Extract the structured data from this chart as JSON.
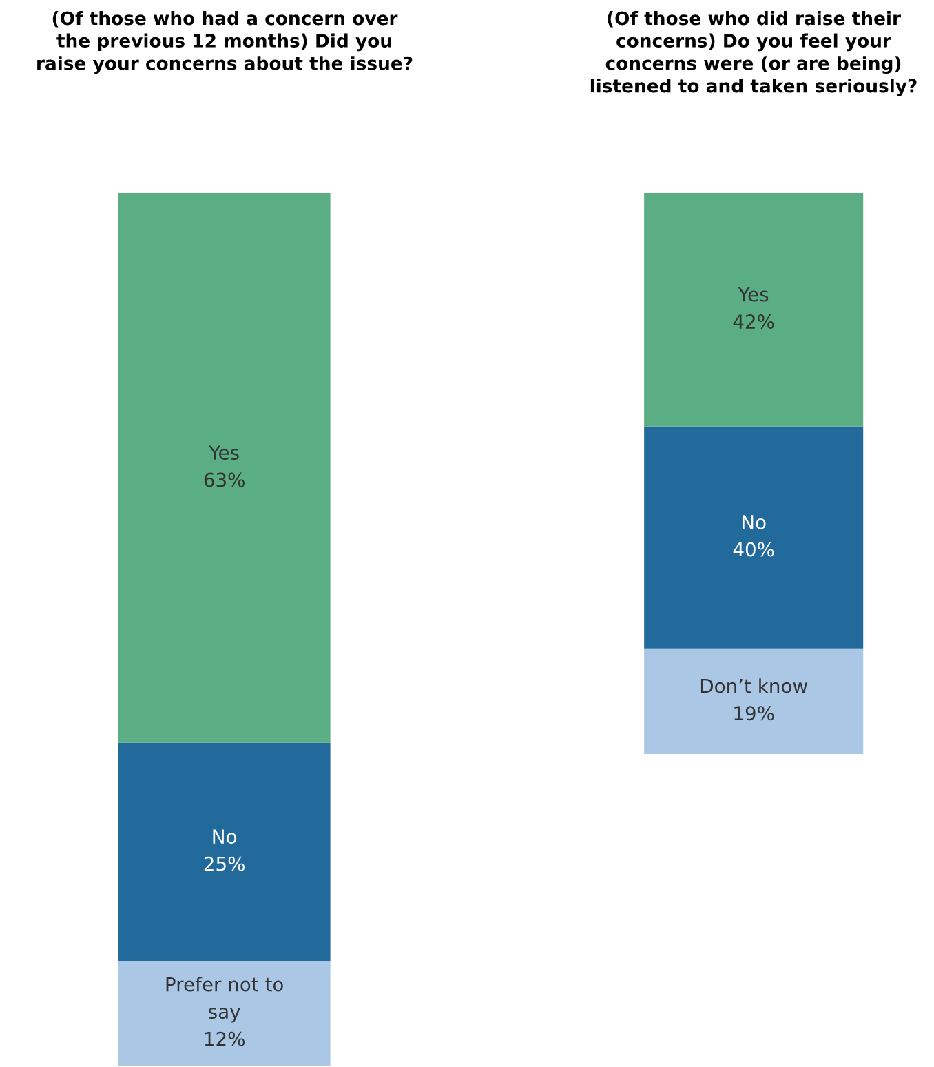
{
  "chart_data": [
    {
      "type": "bar",
      "stacked": true,
      "title": "(Of those who had a concern over\nthe previous 12 months) Did you\nraise your concerns about the issue?",
      "categories": [
        null
      ],
      "ylim": [
        0,
        100
      ],
      "tick_labels": false,
      "legend": false,
      "grid": false,
      "series": [
        {
          "name": "Prefer not to\nsay",
          "color": "#abc7e6",
          "values": [
            12
          ],
          "value_labels": [
            "12%"
          ]
        },
        {
          "name": "No",
          "color": "#236a9c",
          "values": [
            25
          ],
          "value_labels": [
            "25%"
          ]
        },
        {
          "name": "Yes",
          "color": "#5bae84",
          "values": [
            63
          ],
          "value_labels": [
            "63%"
          ]
        }
      ]
    },
    {
      "type": "bar",
      "stacked": true,
      "title": "(Of those who did raise their\nconcerns) Do you feel your\nconcerns were (or are being)\nlistened to and taken seriously?",
      "categories": [
        null
      ],
      "ylim": [
        0,
        101
      ],
      "tick_labels": false,
      "legend": false,
      "grid": false,
      "series": [
        {
          "name": "Don’t know",
          "color": "#abc7e6",
          "values": [
            19
          ],
          "value_labels": [
            "19%"
          ]
        },
        {
          "name": "No",
          "color": "#236a9c",
          "values": [
            40
          ],
          "value_labels": [
            "40%"
          ]
        },
        {
          "name": "Yes",
          "color": "#5bae84",
          "values": [
            42
          ],
          "value_labels": [
            "42%"
          ]
        }
      ]
    }
  ]
}
